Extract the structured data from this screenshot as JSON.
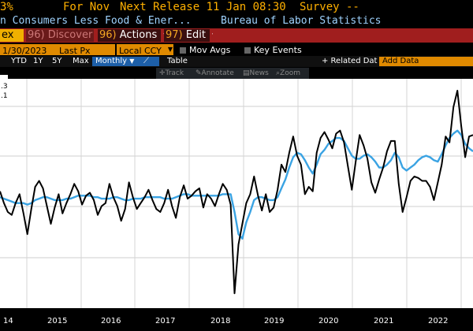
{
  "header": {
    "value_fragment": "3%",
    "for_label": "For Nov",
    "next_release": "Next Release 11 Jan 08:30",
    "survey": "Survey --",
    "security_name": "n Consumers Less Food & Ener...",
    "source": "Bureau of Labor Statistics"
  },
  "menu": {
    "ticker_fragment": "ex",
    "discover_num": "96)",
    "discover_label": "Discover",
    "actions_num": "96)",
    "actions_label": "Actions",
    "edit_num": "97)",
    "edit_label": "Edit"
  },
  "controls": {
    "date": "1/30/2023",
    "field": "Last Px",
    "currency": "Local CCY",
    "mov_avgs": "Mov Avgs",
    "key_events": "Key Events"
  },
  "periods": {
    "items": [
      "YTD",
      "1Y",
      "5Y",
      "Max"
    ],
    "frequency": "Monthly",
    "table": "Table",
    "related_data": "+ Related Dat",
    "add_data": "Add Data"
  },
  "toolbar": {
    "items": [
      "Track",
      "Annotate",
      "News",
      "Zoom"
    ]
  },
  "legend": {
    "values": [
      ".3",
      ".1"
    ]
  },
  "chart_data": {
    "type": "line",
    "x_labels": [
      "14",
      "2015",
      "2016",
      "2017",
      "2018",
      "2019",
      "2020",
      "2021",
      "2022"
    ],
    "grid": true,
    "series": [
      {
        "color": "#000000",
        "values": [
          0.24,
          0.16,
          0.1,
          0.08,
          0.16,
          0.22,
          0.09,
          -0.05,
          0.12,
          0.27,
          0.31,
          0.26,
          0.14,
          0.02,
          0.13,
          0.22,
          0.09,
          0.16,
          0.22,
          0.29,
          0.24,
          0.15,
          0.21,
          0.23,
          0.18,
          0.08,
          0.14,
          0.16,
          0.29,
          0.2,
          0.14,
          0.04,
          0.12,
          0.3,
          0.2,
          0.12,
          0.16,
          0.2,
          0.25,
          0.18,
          0.12,
          0.1,
          0.16,
          0.25,
          0.14,
          0.06,
          0.2,
          0.28,
          0.19,
          0.21,
          0.24,
          0.26,
          0.13,
          0.22,
          0.19,
          0.14,
          0.22,
          0.29,
          0.25,
          0.15,
          -0.45,
          -0.12,
          0.02,
          0.16,
          0.22,
          0.34,
          0.21,
          0.11,
          0.22,
          0.1,
          0.13,
          0.25,
          0.42,
          0.37,
          0.5,
          0.61,
          0.48,
          0.42,
          0.22,
          0.27,
          0.24,
          0.5,
          0.6,
          0.64,
          0.59,
          0.53,
          0.63,
          0.65,
          0.57,
          0.41,
          0.25,
          0.44,
          0.62,
          0.55,
          0.46,
          0.3,
          0.23,
          0.32,
          0.4,
          0.51,
          0.58,
          0.58,
          0.29,
          0.1,
          0.2,
          0.31,
          0.34,
          0.33,
          0.31,
          0.31,
          0.27,
          0.18,
          0.3,
          0.42,
          0.61,
          0.57,
          0.81,
          0.92,
          0.68,
          0.47,
          0.61,
          0.62
        ]
      },
      {
        "color": "#3aa3e3",
        "values": [
          0.2,
          0.19,
          0.18,
          0.17,
          0.16,
          0.16,
          0.16,
          0.15,
          0.16,
          0.18,
          0.19,
          0.2,
          0.2,
          0.19,
          0.18,
          0.18,
          0.18,
          0.19,
          0.19,
          0.2,
          0.21,
          0.21,
          0.21,
          0.21,
          0.2,
          0.2,
          0.19,
          0.19,
          0.19,
          0.2,
          0.2,
          0.19,
          0.18,
          0.18,
          0.19,
          0.19,
          0.19,
          0.2,
          0.2,
          0.2,
          0.2,
          0.2,
          0.19,
          0.19,
          0.19,
          0.2,
          0.21,
          0.22,
          0.22,
          0.21,
          0.21,
          0.21,
          0.21,
          0.21,
          0.21,
          0.21,
          0.21,
          0.22,
          0.22,
          0.22,
          0.1,
          -0.05,
          -0.08,
          0.03,
          0.1,
          0.18,
          0.2,
          0.2,
          0.19,
          0.18,
          0.18,
          0.2,
          0.26,
          0.32,
          0.4,
          0.47,
          0.5,
          0.49,
          0.45,
          0.4,
          0.36,
          0.42,
          0.49,
          0.52,
          0.56,
          0.58,
          0.6,
          0.6,
          0.58,
          0.53,
          0.48,
          0.46,
          0.46,
          0.48,
          0.49,
          0.47,
          0.44,
          0.4,
          0.4,
          0.42,
          0.45,
          0.5,
          0.47,
          0.4,
          0.38,
          0.4,
          0.42,
          0.45,
          0.47,
          0.48,
          0.47,
          0.45,
          0.44,
          0.49,
          0.55,
          0.6,
          0.63,
          0.65,
          0.62,
          0.56,
          0.53,
          0.51
        ]
      }
    ]
  }
}
